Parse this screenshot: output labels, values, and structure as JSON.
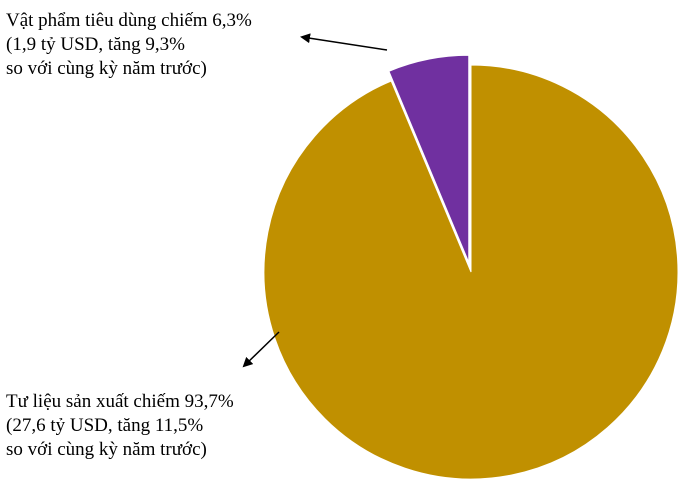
{
  "chart_data": {
    "type": "pie",
    "title": "",
    "slices": [
      {
        "label": "Vật phẩm tiêu dùng",
        "value": 6.3,
        "color": "#7030a0",
        "exploded": true,
        "annotation": [
          "Vật phẩm tiêu dùng chiếm 6,3%",
          "(1,9 tỷ USD, tăng 9,3%",
          "so với cùng kỳ năm trước)"
        ]
      },
      {
        "label": "Tư liệu sản xuất",
        "value": 93.7,
        "color": "#c09000",
        "exploded": false,
        "annotation": [
          "Tư liệu sản xuất chiếm 93,7%",
          "(27,6 tỷ USD, tăng 11,5%",
          "so với cùng kỳ năm trước)"
        ]
      }
    ],
    "start_angle": "12 o'clock",
    "direction": "counter-clockwise",
    "legend": "none",
    "annotation_style": "callout text with arrows"
  }
}
